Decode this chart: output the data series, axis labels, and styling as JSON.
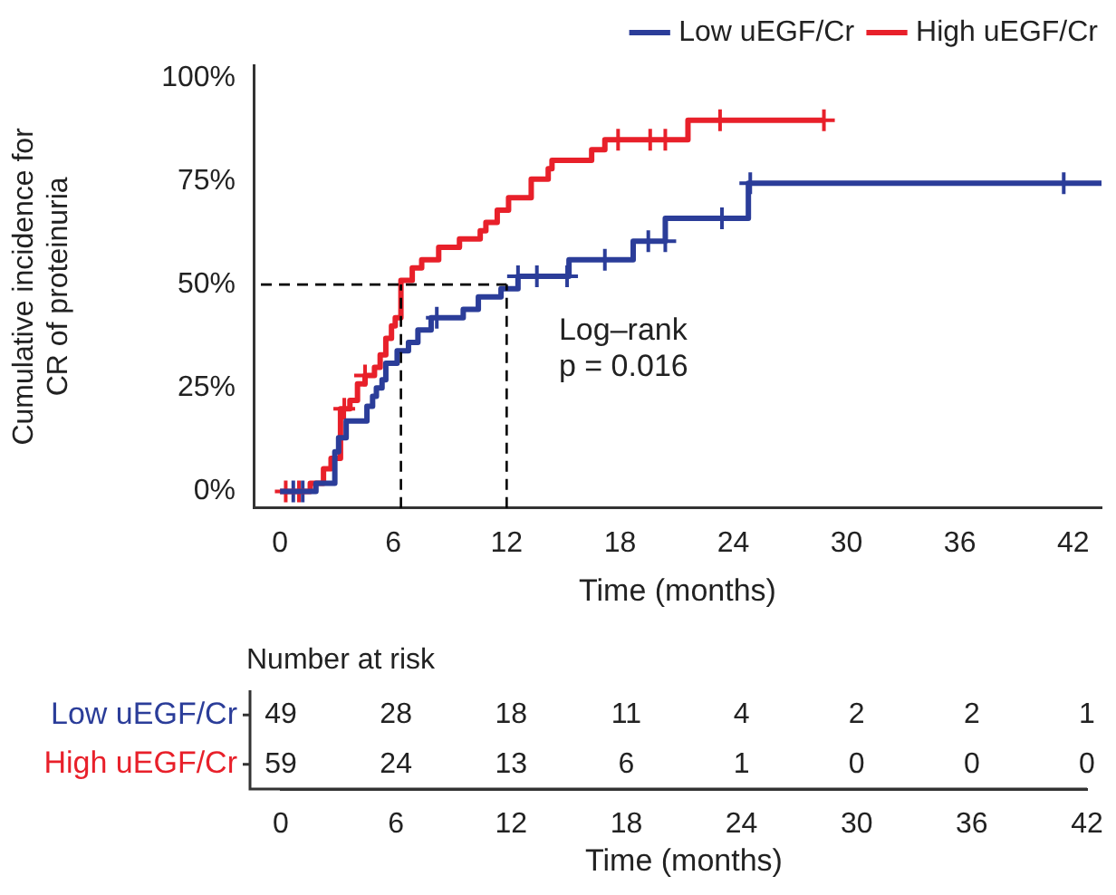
{
  "chart_data": [
    {
      "type": "step",
      "xlabel": "Time (months)",
      "ylabel": "Cumulative incidence for\nCR of proteinuria",
      "xlim": [
        -1.4,
        43.5
      ],
      "xticks": [
        0,
        6,
        12,
        18,
        24,
        30,
        36,
        42
      ],
      "ylim": [
        -4,
        103
      ],
      "yticks": [
        {
          "value": 0,
          "label": "0%"
        },
        {
          "value": 25,
          "label": "25%"
        },
        {
          "value": 50,
          "label": "50%"
        },
        {
          "value": 75,
          "label": "75%"
        },
        {
          "value": 100,
          "label": "100%"
        }
      ],
      "grid": false,
      "legend": "top right",
      "line_style": "solid",
      "marker": "none",
      "series": [
        {
          "name": "Low uEGF/Cr",
          "color": "#2b3d99",
          "x": [
            0,
            1.9,
            2.9,
            3.1,
            3.5,
            4.6,
            4.9,
            5.1,
            5.4,
            5.6,
            6.2,
            6.8,
            7.3,
            8.0,
            9.7,
            10.5,
            11.7,
            12.6,
            15.3,
            18.7,
            20.4,
            24.8,
            43.5
          ],
          "values": [
            0,
            2,
            9.6,
            13,
            17,
            20.6,
            23,
            25,
            27,
            31,
            34,
            36,
            39,
            42,
            44,
            47,
            49,
            52,
            56,
            60.5,
            66,
            74.5,
            74.5
          ]
        },
        {
          "name": "High uEGF/Cr",
          "color": "#e8202a",
          "x": [
            0,
            1.6,
            2.3,
            2.7,
            3.2,
            3.7,
            4.1,
            4.5,
            5.0,
            5.3,
            5.6,
            5.9,
            6.1,
            6.4,
            7.0,
            7.5,
            8.4,
            9.5,
            10.6,
            10.9,
            11.5,
            12.1,
            13.3,
            14.2,
            14.4,
            16.5,
            17.2,
            21.6,
            28.8
          ],
          "values": [
            0,
            2,
            5.5,
            8,
            20,
            22,
            26,
            28,
            30,
            33,
            37,
            40,
            42,
            51,
            54,
            56,
            59,
            61,
            63,
            65,
            68,
            71,
            75.5,
            78,
            80,
            82.6,
            85,
            89.7,
            89.7
          ]
        },
        {
          "type": "scatter",
          "marker": "cross",
          "color": "#2b3d99",
          "x": [
            0.7,
            1.2,
            8.3,
            12.6,
            13.6,
            15.2,
            17.2,
            19.5,
            20.4,
            23.4,
            24.9,
            41.5
          ],
          "values": [
            0,
            0,
            42,
            52,
            52,
            52,
            56,
            60.5,
            60.5,
            66,
            74.5,
            74.5
          ]
        },
        {
          "type": "scatter",
          "marker": "cross",
          "color": "#e8202a",
          "x": [
            0.3,
            1.0,
            3.4,
            4.5,
            17.9,
            19.6,
            20.4,
            23.3,
            28.8
          ],
          "values": [
            0,
            0,
            20,
            28,
            85,
            85,
            85,
            89.7,
            89.7
          ]
        }
      ],
      "ref_lines": [
        {
          "axis": "y",
          "value": 50,
          "line_style": "dashed",
          "color": "#000000"
        },
        {
          "axis": "x",
          "value": 6.4,
          "line_style": "dashed",
          "color": "#000000"
        },
        {
          "axis": "x",
          "value": 12,
          "line_style": "dashed",
          "color": "#000000"
        }
      ],
      "annotations": [
        "Log–rank",
        "p = 0.016"
      ]
    },
    {
      "type": "heatmap",
      "title": "Number at risk",
      "xlabel": "Time (months)",
      "categories": [
        "0",
        "6",
        "12",
        "18",
        "24",
        "30",
        "36",
        "42"
      ],
      "y_categories": [
        "Low uEGF/Cr",
        "High uEGF/Cr"
      ],
      "colors": [
        "#2b3d99",
        "#e8202a"
      ],
      "data_labels": true,
      "cells": [
        [
          49,
          28,
          18,
          11,
          4,
          2,
          2,
          1
        ],
        [
          59,
          24,
          13,
          6,
          1,
          0,
          0,
          0
        ]
      ]
    }
  ]
}
